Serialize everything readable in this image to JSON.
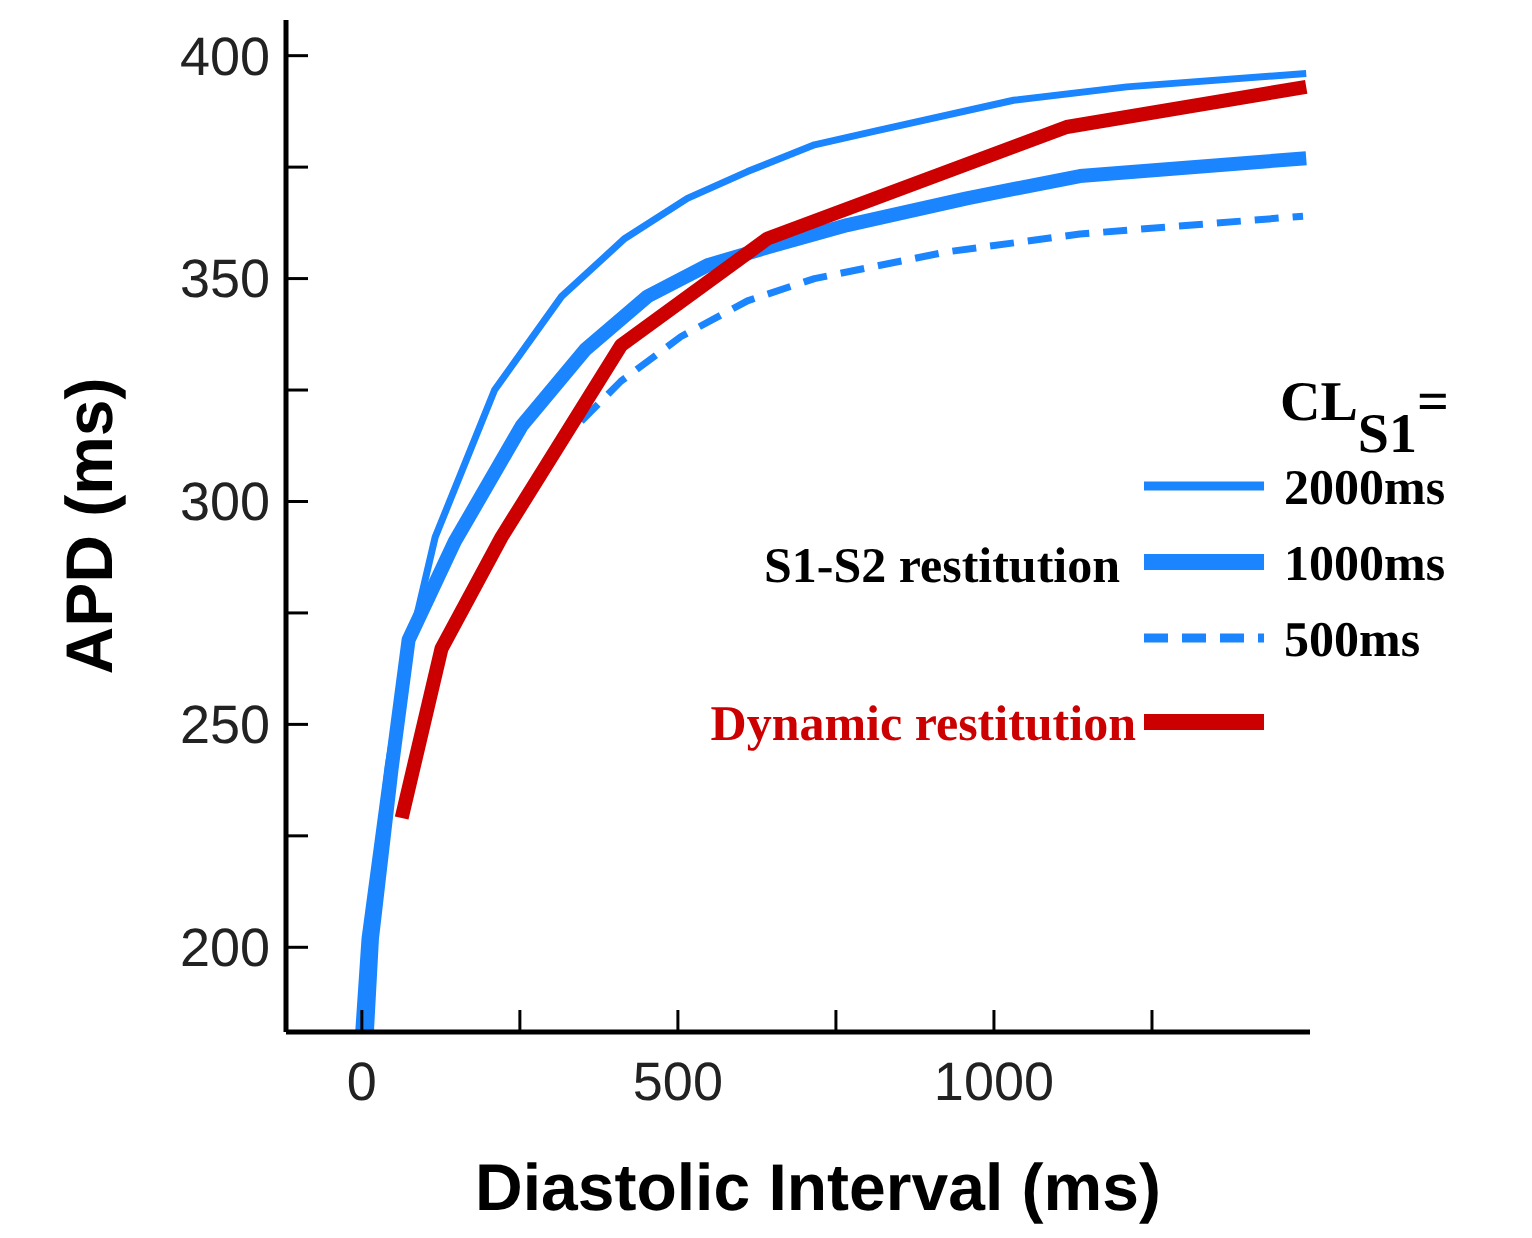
{
  "chart_data": {
    "type": "line",
    "xlabel": "Diastolic Interval (ms)",
    "ylabel": "APD (ms)",
    "legend_title": "CL$_{S1}$=",
    "annotations": [
      "S1-S2 restitution"
    ],
    "legend": "right",
    "grid": false,
    "marker": "none",
    "xlim": [
      -120,
      1500
    ],
    "xticks": [
      0,
      {
        "value": 250,
        "label": null
      },
      500,
      {
        "value": 750,
        "label": null
      },
      1000,
      {
        "value": 1250,
        "label": null
      }
    ],
    "ylim": [
      181,
      408
    ],
    "yticks": [
      200,
      {
        "value": 225,
        "label": null
      },
      250,
      {
        "value": 275,
        "label": null
      },
      300,
      {
        "value": 325,
        "label": null
      },
      350,
      {
        "value": 375,
        "label": null
      },
      400
    ],
    "series": [
      {
        "name": "2000ms",
        "color": "#1a85ff",
        "line_style": "solid",
        "x": [
          -5,
          5,
          42,
          68,
          116,
          210,
          316,
          416,
          515,
          610,
          716,
          810,
          1031,
          1210,
          1494
        ],
        "values": [
          181,
          202,
          241,
          263,
          292,
          325,
          346,
          359,
          368,
          374,
          380,
          383,
          390,
          393,
          396
        ]
      },
      {
        "name": "1000ms",
        "color": "#1a85ff",
        "line_style": "solid",
        "x": [
          8,
          16,
          47,
          74,
          147,
          253,
          353,
          452,
          547,
          642,
          768,
          957,
          1136,
          1494
        ],
        "values": [
          181,
          202,
          240,
          269,
          291,
          317,
          334,
          346,
          353,
          357,
          362,
          368,
          373,
          377
        ]
      },
      {
        "name": "500ms",
        "color": "#1a85ff",
        "line_style": "dashed",
        "x": [
          347,
          410,
          505,
          610,
          716,
          926,
          1136,
          1489
        ],
        "values": [
          318,
          327,
          337,
          345,
          350,
          356,
          360,
          364
        ]
      },
      {
        "name": "Dynamic restitution",
        "color": "#cc0000",
        "line_style": "solid",
        "x": [
          63,
          126,
          221,
          410,
          642,
          1115,
          1494
        ],
        "values": [
          229,
          267,
          292,
          335,
          359,
          384,
          393
        ]
      }
    ]
  }
}
